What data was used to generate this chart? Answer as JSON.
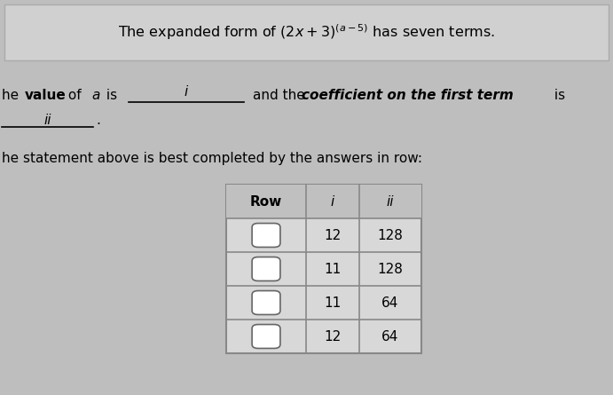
{
  "bg_color": "#bebebe",
  "title_box_color": "#d0d0d0",
  "title_box_edge": "#aaaaaa",
  "table_bg": "#d8d8d8",
  "table_edge": "#888888",
  "table_header_bg": "#c0c0c0",
  "font_size_title": 11.5,
  "font_size_body": 11,
  "font_size_table": 11,
  "row_i_values": [
    "12",
    "11",
    "11",
    "12"
  ],
  "row_ii_values": [
    "128",
    "128",
    "64",
    "64"
  ]
}
